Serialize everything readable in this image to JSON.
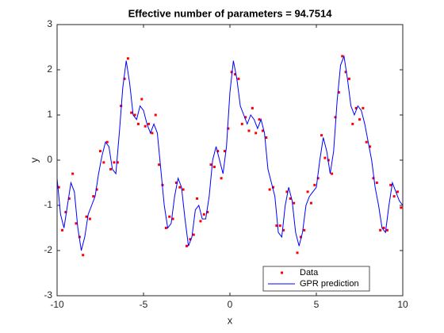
{
  "chart_data": {
    "type": "line",
    "title": "Effective number of parameters = 94.7514",
    "xlabel": "x",
    "ylabel": "y",
    "xlim": [
      -10,
      10
    ],
    "ylim": [
      -3,
      3
    ],
    "xticks": [
      -10,
      -5,
      0,
      5,
      10
    ],
    "yticks": [
      -3,
      -2,
      -1,
      0,
      1,
      2,
      3
    ],
    "grid": false,
    "legend_location": "southeast",
    "series": [
      {
        "name": "Data",
        "color": "#ff0000",
        "mode": "markers",
        "x": [
          -9.9,
          -9.7,
          -9.5,
          -9.3,
          -9.1,
          -8.9,
          -8.7,
          -8.5,
          -8.3,
          -8.1,
          -7.9,
          -7.7,
          -7.5,
          -7.3,
          -7.1,
          -6.9,
          -6.7,
          -6.5,
          -6.3,
          -6.1,
          -5.9,
          -5.7,
          -5.5,
          -5.3,
          -5.1,
          -4.9,
          -4.7,
          -4.5,
          -4.3,
          -4.1,
          -3.9,
          -3.7,
          -3.5,
          -3.3,
          -3.1,
          -2.9,
          -2.7,
          -2.5,
          -2.3,
          -2.1,
          -1.9,
          -1.7,
          -1.5,
          -1.3,
          -1.1,
          -0.9,
          -0.7,
          -0.5,
          -0.3,
          -0.1,
          0.1,
          0.3,
          0.5,
          0.7,
          0.9,
          1.1,
          1.3,
          1.5,
          1.7,
          1.9,
          2.1,
          2.3,
          2.5,
          2.7,
          2.9,
          3.1,
          3.3,
          3.5,
          3.7,
          3.9,
          4.1,
          4.3,
          4.5,
          4.7,
          4.9,
          5.1,
          5.3,
          5.5,
          5.7,
          5.9,
          6.1,
          6.3,
          6.5,
          6.7,
          6.9,
          7.1,
          7.3,
          7.5,
          7.7,
          7.9,
          8.1,
          8.3,
          8.5,
          8.7,
          8.9,
          9.1,
          9.3,
          9.5,
          9.7,
          9.9
        ],
        "values": [
          -0.6,
          -1.55,
          -1.15,
          -0.85,
          -0.3,
          -1.4,
          -1.7,
          -2.1,
          -1.25,
          -1.3,
          -0.8,
          -0.65,
          0.2,
          -0.05,
          0.4,
          -0.2,
          -0.05,
          -0.05,
          1.2,
          1.8,
          2.25,
          1.05,
          1.0,
          0.8,
          1.35,
          0.75,
          0.8,
          0.6,
          1.0,
          -0.1,
          -0.55,
          -1.5,
          -1.25,
          -1.3,
          -0.5,
          -0.6,
          -0.65,
          -1.9,
          -1.75,
          -1.65,
          -0.85,
          -1.35,
          -1.2,
          -1.15,
          -0.1,
          -0.15,
          0.2,
          -0.4,
          0.2,
          0.7,
          1.95,
          1.9,
          1.8,
          0.8,
          0.95,
          0.65,
          1.15,
          0.6,
          0.9,
          0.65,
          0.5,
          -0.65,
          -0.6,
          -1.45,
          -1.45,
          -1.55,
          -0.7,
          -0.85,
          -0.95,
          -2.05,
          -1.7,
          -1.55,
          -0.7,
          -0.95,
          -0.55,
          -0.4,
          0.55,
          0.05,
          0,
          -0.3,
          0.95,
          1.5,
          2.3,
          1.95,
          1.8,
          0.8,
          1.15,
          0.9,
          1.15,
          0.4,
          0.3,
          -0.4,
          -0.5,
          -1.55,
          -1.5,
          -1.55,
          -0.55,
          -0.8,
          -0.7,
          -1.05
        ]
      },
      {
        "name": "GPR prediction",
        "color": "#0000ff",
        "mode": "line",
        "x": [
          -10,
          -9.8,
          -9.6,
          -9.4,
          -9.2,
          -9,
          -8.8,
          -8.6,
          -8.4,
          -8.2,
          -8,
          -7.8,
          -7.6,
          -7.4,
          -7.2,
          -7,
          -6.8,
          -6.6,
          -6.4,
          -6.2,
          -6,
          -5.8,
          -5.6,
          -5.4,
          -5.2,
          -5,
          -4.8,
          -4.6,
          -4.4,
          -4.2,
          -4,
          -3.8,
          -3.6,
          -3.4,
          -3.2,
          -3,
          -2.8,
          -2.6,
          -2.4,
          -2.2,
          -2,
          -1.8,
          -1.6,
          -1.4,
          -1.2,
          -1,
          -0.8,
          -0.6,
          -0.4,
          -0.2,
          0,
          0.2,
          0.4,
          0.6,
          0.8,
          1,
          1.2,
          1.4,
          1.6,
          1.8,
          2,
          2.2,
          2.4,
          2.6,
          2.8,
          3,
          3.2,
          3.4,
          3.6,
          3.8,
          4,
          4.2,
          4.4,
          4.6,
          4.8,
          5,
          5.2,
          5.4,
          5.6,
          5.8,
          6,
          6.2,
          6.4,
          6.6,
          6.8,
          7,
          7.2,
          7.4,
          7.6,
          7.8,
          8,
          8.2,
          8.4,
          8.6,
          8.8,
          9,
          9.2,
          9.4,
          9.6,
          9.8,
          10
        ],
        "values": [
          -0.4,
          -1.2,
          -1.5,
          -1.0,
          -0.5,
          -0.7,
          -1.5,
          -2.0,
          -1.7,
          -1.2,
          -1.0,
          -0.8,
          -0.3,
          0.1,
          0.4,
          0.3,
          -0.2,
          -0.3,
          0.6,
          1.6,
          2.2,
          1.7,
          1.0,
          0.9,
          1.2,
          1.1,
          0.8,
          0.6,
          0.8,
          0.6,
          -0.2,
          -1.0,
          -1.5,
          -1.4,
          -0.8,
          -0.4,
          -0.6,
          -1.3,
          -1.9,
          -1.7,
          -1.1,
          -1.0,
          -1.3,
          -1.3,
          -0.8,
          0.0,
          0.3,
          0.0,
          -0.3,
          0.3,
          1.5,
          2.2,
          1.8,
          1.2,
          1.0,
          0.8,
          1.0,
          0.9,
          0.7,
          0.9,
          0.6,
          -0.2,
          -0.5,
          -0.8,
          -1.6,
          -1.7,
          -1.0,
          -0.6,
          -0.9,
          -1.6,
          -1.9,
          -1.6,
          -1.0,
          -0.8,
          -0.7,
          -0.6,
          0.0,
          0.5,
          0.2,
          -0.3,
          0.2,
          1.3,
          2.1,
          2.3,
          1.8,
          1.2,
          1.0,
          1.2,
          1.1,
          0.8,
          0.4,
          0.0,
          -0.6,
          -1.0,
          -1.5,
          -1.6,
          -1.0,
          -0.5,
          -0.7,
          -0.9,
          -1.0
        ]
      }
    ]
  }
}
